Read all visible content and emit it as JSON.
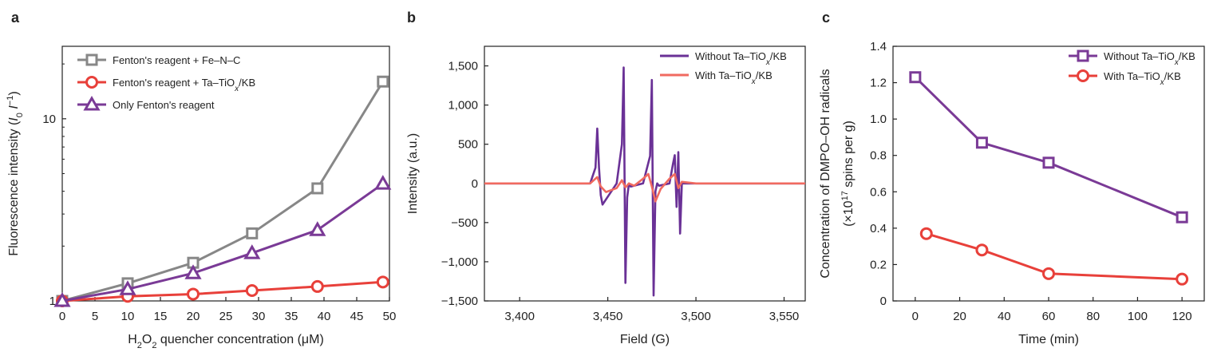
{
  "chart_data": [
    {
      "panel_label": "a",
      "type": "line",
      "xlabel": "H2O2 quencher concentration (μM)",
      "ylabel": "Fluorescence intensity (I0 I−1)",
      "xlim": [
        0,
        50
      ],
      "ylim": [
        1,
        25
      ],
      "yscale": "log",
      "xticks": [
        "0",
        "5",
        "10",
        "15",
        "20",
        "25",
        "30",
        "35",
        "40",
        "45",
        "50"
      ],
      "yticks": [
        "1",
        "10"
      ],
      "legend_position": "top-left",
      "series": [
        {
          "name": "Fenton's reagent + Fe–N–C",
          "color": "#878787",
          "marker": "square",
          "x": [
            0,
            10,
            20,
            29,
            39,
            49
          ],
          "y": [
            1.0,
            1.25,
            1.62,
            2.35,
            4.15,
            16.0
          ]
        },
        {
          "name": "Fenton's reagent + Ta–TiOx/KB",
          "color": "#e8403a",
          "marker": "circle",
          "x": [
            0,
            10,
            20,
            29,
            39,
            49
          ],
          "y": [
            1.0,
            1.06,
            1.09,
            1.14,
            1.2,
            1.27
          ]
        },
        {
          "name": "Only Fenton's reagent",
          "color": "#7a3a96",
          "marker": "triangle",
          "x": [
            0,
            10,
            20,
            29,
            39,
            49
          ],
          "y": [
            1.0,
            1.16,
            1.42,
            1.83,
            2.45,
            4.4
          ]
        }
      ]
    },
    {
      "panel_label": "b",
      "type": "line",
      "xlabel": "Field (G)",
      "ylabel": "Intensity (a.u.)",
      "xlim": [
        3380,
        3562
      ],
      "ylim": [
        -1500,
        1750
      ],
      "xticks": [
        "3,400",
        "3,450",
        "3,500",
        "3,550"
      ],
      "yticks": [
        "−1,500",
        "−1,000",
        "−500",
        "0",
        "500",
        "1,000",
        "1,500"
      ],
      "legend_position": "top-right",
      "series": [
        {
          "name": "Without Ta–TiOx/KB",
          "color": "#6a3196",
          "x": [
            3380,
            3400,
            3420,
            3440,
            3443,
            3444,
            3445,
            3446,
            3447,
            3455,
            3458,
            3459,
            3460,
            3461,
            3462,
            3463,
            3470,
            3474,
            3475,
            3476,
            3477,
            3478,
            3479,
            3485,
            3487,
            3488,
            3489,
            3490,
            3491,
            3492,
            3500,
            3520,
            3540,
            3562
          ],
          "y": [
            0,
            0,
            0,
            0,
            200,
            700,
            200,
            -150,
            -270,
            0,
            500,
            1480,
            -1270,
            -180,
            0,
            -40,
            0,
            350,
            1320,
            -1430,
            -100,
            0,
            -30,
            0,
            250,
            360,
            -300,
            400,
            -640,
            0,
            0,
            0,
            0,
            0
          ]
        },
        {
          "name": "With Ta–TiOx/KB",
          "color": "#f06a60",
          "x": [
            3380,
            3400,
            3420,
            3440,
            3444,
            3446,
            3449,
            3455,
            3458,
            3460,
            3462,
            3465,
            3470,
            3473,
            3475,
            3477,
            3480,
            3485,
            3488,
            3490,
            3492,
            3500,
            3520,
            3540,
            3562
          ],
          "y": [
            0,
            0,
            0,
            0,
            80,
            -40,
            -110,
            -60,
            40,
            -50,
            0,
            -30,
            60,
            120,
            -40,
            -230,
            -70,
            60,
            120,
            -60,
            20,
            0,
            0,
            0,
            0
          ]
        }
      ]
    },
    {
      "panel_label": "c",
      "type": "line",
      "xlabel": "Time (min)",
      "ylabel": "Concentration of DMPO–OH radicals (×10^17 spins per g)",
      "xlim": [
        -10,
        130
      ],
      "ylim": [
        0,
        1.4
      ],
      "xticks": [
        "0",
        "20",
        "40",
        "60",
        "80",
        "100",
        "120"
      ],
      "yticks": [
        "0",
        "0.2",
        "0.4",
        "0.6",
        "0.8",
        "1.0",
        "1.2",
        "1.4"
      ],
      "legend_position": "top-right",
      "series": [
        {
          "name": "Without Ta–TiOx/KB",
          "color": "#7a3a96",
          "marker": "square",
          "x": [
            0,
            30,
            60,
            120
          ],
          "y": [
            1.23,
            0.87,
            0.76,
            0.46
          ]
        },
        {
          "name": "With Ta–TiOx/KB",
          "color": "#e8403a",
          "marker": "circle",
          "x": [
            5,
            30,
            60,
            120
          ],
          "y": [
            0.37,
            0.28,
            0.15,
            0.12
          ]
        }
      ]
    }
  ]
}
